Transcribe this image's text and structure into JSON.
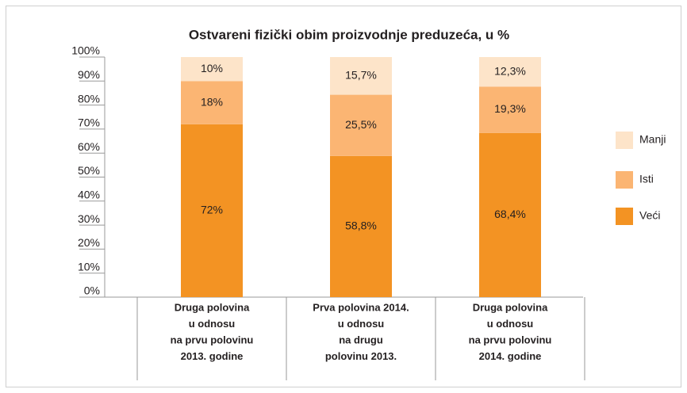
{
  "chart_data": {
    "type": "stacked_bar",
    "title": "Ostvareni fizički obim proizvodnje preduzeća, u %",
    "categories": [
      [
        "Druga polovina",
        "u odnosu",
        "na prvu polovinu",
        "2013. godine"
      ],
      [
        "Prva polovina 2014.",
        "u odnosu",
        "na drugu",
        "polovinu 2013."
      ],
      [
        "Druga polovina",
        "u odnosu",
        "na prvu polovinu",
        "2014. godine"
      ]
    ],
    "series": [
      {
        "name": "Veći",
        "color": "#f39323",
        "values": [
          72,
          58.8,
          68.4
        ],
        "value_labels": [
          "72%",
          "58,8%",
          "68,4%"
        ]
      },
      {
        "name": "Isti",
        "color": "#fbb573",
        "values": [
          18,
          25.5,
          19.3
        ],
        "value_labels": [
          "18%",
          "25,5%",
          "19,3%"
        ]
      },
      {
        "name": "Manji",
        "color": "#fde4c9",
        "values": [
          10,
          15.7,
          12.3
        ],
        "value_labels": [
          "10%",
          "15,7%",
          "12,3%"
        ]
      }
    ],
    "ylim": [
      0,
      100
    ],
    "yticks": [
      {
        "value": 0,
        "label": "0%"
      },
      {
        "value": 10,
        "label": "10%"
      },
      {
        "value": 20,
        "label": "20%"
      },
      {
        "value": 30,
        "label": "30%"
      },
      {
        "value": 40,
        "label": "40%"
      },
      {
        "value": 50,
        "label": "50%"
      },
      {
        "value": 60,
        "label": "60%"
      },
      {
        "value": 70,
        "label": "70%"
      },
      {
        "value": 80,
        "label": "80%"
      },
      {
        "value": 90,
        "label": "90%"
      },
      {
        "value": 100,
        "label": "100%"
      }
    ],
    "legend": "right"
  }
}
